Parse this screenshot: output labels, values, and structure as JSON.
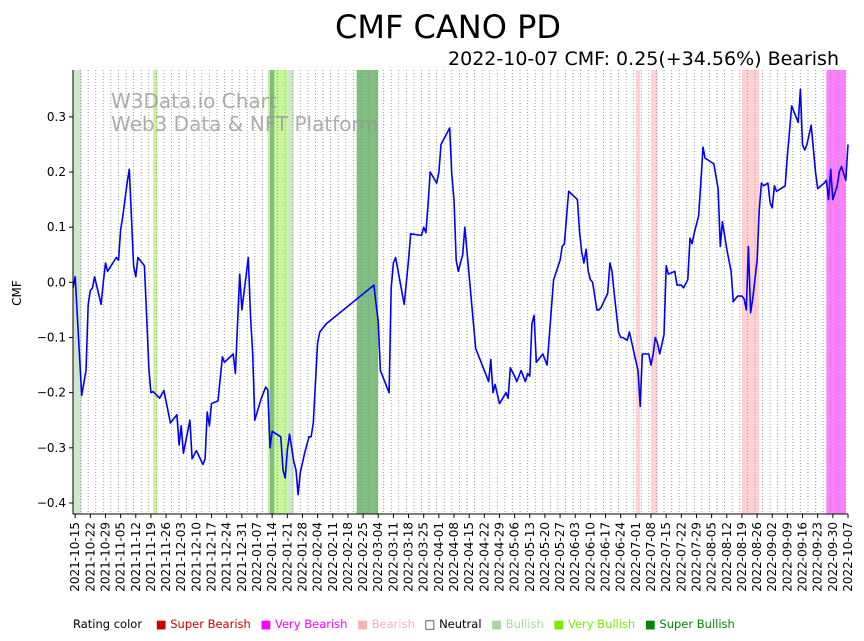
{
  "chart_data": {
    "type": "line",
    "title": "CMF CANO PD",
    "subtitle": "2022-10-07 CMF: 0.25(+34.56%) Bearish",
    "ylabel": "CMF",
    "watermark": [
      "W3Data.io Chart",
      "Web3 Data & NFT Platform"
    ],
    "x_start": "2021-10-14",
    "x_end": "2022-10-07",
    "ylim": [
      -0.42,
      0.385
    ],
    "yticks": [
      -0.4,
      -0.3,
      -0.2,
      -0.1,
      0.0,
      0.1,
      0.2,
      0.3
    ],
    "ytick_labels": [
      "−0.4",
      "−0.3",
      "−0.2",
      "−0.1",
      "0.0",
      "0.1",
      "0.2",
      "0.3"
    ],
    "xtick_labels": [
      "2021-10-15",
      "2021-10-22",
      "2021-10-29",
      "2021-11-05",
      "2021-11-12",
      "2021-11-19",
      "2021-11-26",
      "2021-12-03",
      "2021-12-10",
      "2021-12-17",
      "2021-12-24",
      "2021-12-31",
      "2022-01-07",
      "2022-01-14",
      "2022-01-21",
      "2022-01-28",
      "2022-02-04",
      "2022-02-11",
      "2022-02-18",
      "2022-02-25",
      "2022-03-04",
      "2022-03-11",
      "2022-03-18",
      "2022-03-25",
      "2022-04-01",
      "2022-04-08",
      "2022-04-15",
      "2022-04-22",
      "2022-04-29",
      "2022-05-06",
      "2022-05-13",
      "2022-05-20",
      "2022-05-27",
      "2022-06-03",
      "2022-06-10",
      "2022-06-17",
      "2022-06-24",
      "2022-07-01",
      "2022-07-08",
      "2022-07-15",
      "2022-07-22",
      "2022-07-29",
      "2022-08-05",
      "2022-08-12",
      "2022-08-19",
      "2022-08-26",
      "2022-09-02",
      "2022-09-09",
      "2022-09-16",
      "2022-09-23",
      "2022-09-30",
      "2022-10-07"
    ],
    "line_color": "#0000ff",
    "bands": [
      {
        "start": "2021-10-14",
        "end": "2021-10-18",
        "rating": "bullish"
      },
      {
        "start": "2021-11-20",
        "end": "2021-11-22",
        "rating": "very_bullish"
      },
      {
        "start": "2022-01-12",
        "end": "2022-01-21",
        "rating": "very_bullish"
      },
      {
        "start": "2022-01-13",
        "end": "2022-01-15",
        "rating": "super_bullish"
      },
      {
        "start": "2022-01-21",
        "end": "2022-01-24",
        "rating": "bullish"
      },
      {
        "start": "2022-02-22",
        "end": "2022-03-04",
        "rating": "super_bullish"
      },
      {
        "start": "2022-07-01",
        "end": "2022-07-03",
        "rating": "bearish"
      },
      {
        "start": "2022-07-08",
        "end": "2022-07-11",
        "rating": "bearish"
      },
      {
        "start": "2022-08-19",
        "end": "2022-08-27",
        "rating": "bearish"
      },
      {
        "start": "2022-09-27",
        "end": "2022-10-06",
        "rating": "very_bearish"
      }
    ],
    "series": [
      {
        "points": [
          [
            "2021-10-14",
            -0.01
          ],
          [
            "2021-10-15",
            0.01
          ],
          [
            "2021-10-16",
            -0.06
          ],
          [
            "2021-10-18",
            -0.205
          ],
          [
            "2021-10-20",
            -0.16
          ],
          [
            "2021-10-21",
            -0.04
          ],
          [
            "2021-10-22",
            -0.015
          ],
          [
            "2021-10-23",
            -0.01
          ],
          [
            "2021-10-24",
            0.01
          ],
          [
            "2021-10-27",
            -0.04
          ],
          [
            "2021-10-28",
            0.0
          ],
          [
            "2021-10-29",
            0.035
          ],
          [
            "2021-10-30",
            0.02
          ],
          [
            "2021-11-03",
            0.045
          ],
          [
            "2021-11-04",
            0.04
          ],
          [
            "2021-11-05",
            0.095
          ],
          [
            "2021-11-06",
            0.12
          ],
          [
            "2021-11-08",
            0.18
          ],
          [
            "2021-11-09",
            0.205
          ],
          [
            "2021-11-10",
            0.12
          ],
          [
            "2021-11-11",
            0.03
          ],
          [
            "2021-11-12",
            0.01
          ],
          [
            "2021-11-13",
            0.045
          ],
          [
            "2021-11-16",
            0.03
          ],
          [
            "2021-11-17",
            -0.06
          ],
          [
            "2021-11-18",
            -0.155
          ],
          [
            "2021-11-19",
            -0.2
          ],
          [
            "2021-11-20",
            -0.198
          ],
          [
            "2021-11-23",
            -0.21
          ],
          [
            "2021-11-25",
            -0.196
          ],
          [
            "2021-11-28",
            -0.255
          ],
          [
            "2021-12-01",
            -0.24
          ],
          [
            "2021-12-02",
            -0.295
          ],
          [
            "2021-12-03",
            -0.26
          ],
          [
            "2021-12-04",
            -0.31
          ],
          [
            "2021-12-07",
            -0.25
          ],
          [
            "2021-12-08",
            -0.32
          ],
          [
            "2021-12-10",
            -0.305
          ],
          [
            "2021-12-13",
            -0.33
          ],
          [
            "2021-12-14",
            -0.32
          ],
          [
            "2021-12-15",
            -0.235
          ],
          [
            "2021-12-16",
            -0.26
          ],
          [
            "2021-12-17",
            -0.22
          ],
          [
            "2021-12-20",
            -0.215
          ],
          [
            "2021-12-22",
            -0.135
          ],
          [
            "2021-12-23",
            -0.145
          ],
          [
            "2021-12-27",
            -0.13
          ],
          [
            "2021-12-28",
            -0.165
          ],
          [
            "2021-12-30",
            0.015
          ],
          [
            "2021-12-31",
            -0.05
          ],
          [
            "2022-01-03",
            0.045
          ],
          [
            "2022-01-04",
            -0.06
          ],
          [
            "2022-01-05",
            -0.13
          ],
          [
            "2022-01-06",
            -0.25
          ],
          [
            "2022-01-09",
            -0.21
          ],
          [
            "2022-01-11",
            -0.19
          ],
          [
            "2022-01-12",
            -0.195
          ],
          [
            "2022-01-13",
            -0.3
          ],
          [
            "2022-01-14",
            -0.27
          ],
          [
            "2022-01-18",
            -0.28
          ],
          [
            "2022-01-19",
            -0.34
          ],
          [
            "2022-01-20",
            -0.355
          ],
          [
            "2022-01-21",
            -0.305
          ],
          [
            "2022-01-22",
            -0.275
          ],
          [
            "2022-01-24",
            -0.325
          ],
          [
            "2022-01-25",
            -0.34
          ],
          [
            "2022-01-26",
            -0.385
          ],
          [
            "2022-01-27",
            -0.345
          ],
          [
            "2022-01-29",
            -0.31
          ],
          [
            "2022-01-31",
            -0.28
          ],
          [
            "2022-02-01",
            -0.28
          ],
          [
            "2022-02-02",
            -0.255
          ],
          [
            "2022-02-04",
            -0.11
          ],
          [
            "2022-02-05",
            -0.09
          ],
          [
            "2022-02-08",
            -0.075
          ],
          [
            "2022-03-02",
            -0.005
          ],
          [
            "2022-03-03",
            -0.04
          ],
          [
            "2022-03-04",
            -0.07
          ],
          [
            "2022-03-05",
            -0.16
          ],
          [
            "2022-03-09",
            -0.2
          ],
          [
            "2022-03-10",
            -0.01
          ],
          [
            "2022-03-11",
            0.035
          ],
          [
            "2022-03-12",
            0.045
          ],
          [
            "2022-03-16",
            -0.04
          ],
          [
            "2022-03-18",
            0.04
          ],
          [
            "2022-03-19",
            0.088
          ],
          [
            "2022-03-24",
            0.085
          ],
          [
            "2022-03-25",
            0.1
          ],
          [
            "2022-03-26",
            0.09
          ],
          [
            "2022-03-27",
            0.14
          ],
          [
            "2022-03-28",
            0.2
          ],
          [
            "2022-03-31",
            0.18
          ],
          [
            "2022-04-01",
            0.2
          ],
          [
            "2022-04-02",
            0.25
          ],
          [
            "2022-04-04",
            0.265
          ],
          [
            "2022-04-06",
            0.28
          ],
          [
            "2022-04-07",
            0.195
          ],
          [
            "2022-04-08",
            0.15
          ],
          [
            "2022-04-09",
            0.04
          ],
          [
            "2022-04-10",
            0.02
          ],
          [
            "2022-04-12",
            0.05
          ],
          [
            "2022-04-13",
            0.1
          ],
          [
            "2022-04-18",
            -0.12
          ],
          [
            "2022-04-23",
            -0.17
          ],
          [
            "2022-04-24",
            -0.18
          ],
          [
            "2022-04-25",
            -0.14
          ],
          [
            "2022-04-26",
            -0.2
          ],
          [
            "2022-04-27",
            -0.185
          ],
          [
            "2022-04-29",
            -0.22
          ],
          [
            "2022-05-02",
            -0.2
          ],
          [
            "2022-05-03",
            -0.21
          ],
          [
            "2022-05-04",
            -0.155
          ],
          [
            "2022-05-06",
            -0.17
          ],
          [
            "2022-05-07",
            -0.18
          ],
          [
            "2022-05-08",
            -0.17
          ],
          [
            "2022-05-09",
            -0.16
          ],
          [
            "2022-05-11",
            -0.18
          ],
          [
            "2022-05-12",
            -0.165
          ],
          [
            "2022-05-13",
            -0.17
          ],
          [
            "2022-05-14",
            -0.075
          ],
          [
            "2022-05-15",
            -0.06
          ],
          [
            "2022-05-16",
            -0.145
          ],
          [
            "2022-05-17",
            -0.14
          ],
          [
            "2022-05-19",
            -0.13
          ],
          [
            "2022-05-21",
            -0.15
          ],
          [
            "2022-05-24",
            0.005
          ],
          [
            "2022-05-27",
            0.04
          ],
          [
            "2022-05-28",
            0.065
          ],
          [
            "2022-05-29",
            0.07
          ],
          [
            "2022-05-30",
            0.12
          ],
          [
            "2022-05-31",
            0.165
          ],
          [
            "2022-06-04",
            0.15
          ],
          [
            "2022-06-05",
            0.09
          ],
          [
            "2022-06-06",
            0.055
          ],
          [
            "2022-06-07",
            0.035
          ],
          [
            "2022-06-08",
            0.06
          ],
          [
            "2022-06-09",
            0.02
          ],
          [
            "2022-06-10",
            0.005
          ],
          [
            "2022-06-11",
            0.0
          ],
          [
            "2022-06-13",
            -0.05
          ],
          [
            "2022-06-14",
            -0.05
          ],
          [
            "2022-06-15",
            -0.045
          ],
          [
            "2022-06-18",
            -0.02
          ],
          [
            "2022-06-19",
            0.035
          ],
          [
            "2022-06-20",
            0.02
          ],
          [
            "2022-06-21",
            -0.02
          ],
          [
            "2022-06-23",
            -0.09
          ],
          [
            "2022-06-24",
            -0.1
          ],
          [
            "2022-06-25",
            -0.1
          ],
          [
            "2022-06-27",
            -0.105
          ],
          [
            "2022-06-28",
            -0.09
          ],
          [
            "2022-07-02",
            -0.16
          ],
          [
            "2022-07-03",
            -0.225
          ],
          [
            "2022-07-04",
            -0.13
          ],
          [
            "2022-07-07",
            -0.13
          ],
          [
            "2022-07-08",
            -0.15
          ],
          [
            "2022-07-09",
            -0.13
          ],
          [
            "2022-07-10",
            -0.1
          ],
          [
            "2022-07-11",
            -0.11
          ],
          [
            "2022-07-12",
            -0.13
          ],
          [
            "2022-07-14",
            -0.095
          ],
          [
            "2022-07-15",
            0.03
          ],
          [
            "2022-07-16",
            0.015
          ],
          [
            "2022-07-19",
            0.02
          ],
          [
            "2022-07-20",
            -0.005
          ],
          [
            "2022-07-22",
            -0.005
          ],
          [
            "2022-07-23",
            -0.01
          ],
          [
            "2022-07-25",
            0.005
          ],
          [
            "2022-07-26",
            0.08
          ],
          [
            "2022-07-27",
            0.07
          ],
          [
            "2022-07-28",
            0.09
          ],
          [
            "2022-07-30",
            0.12
          ],
          [
            "2022-07-31",
            0.18
          ],
          [
            "2022-08-01",
            0.245
          ],
          [
            "2022-08-02",
            0.225
          ],
          [
            "2022-08-04",
            0.22
          ],
          [
            "2022-08-06",
            0.215
          ],
          [
            "2022-08-08",
            0.17
          ],
          [
            "2022-08-09",
            0.065
          ],
          [
            "2022-08-10",
            0.11
          ],
          [
            "2022-08-12",
            0.06
          ],
          [
            "2022-08-14",
            0.02
          ],
          [
            "2022-08-15",
            -0.035
          ],
          [
            "2022-08-16",
            -0.03
          ],
          [
            "2022-08-17",
            -0.025
          ],
          [
            "2022-08-19",
            -0.025
          ],
          [
            "2022-08-20",
            -0.03
          ],
          [
            "2022-08-21",
            -0.05
          ],
          [
            "2022-08-22",
            0.065
          ],
          [
            "2022-08-23",
            -0.055
          ],
          [
            "2022-08-24",
            -0.03
          ],
          [
            "2022-08-26",
            0.04
          ],
          [
            "2022-08-27",
            0.13
          ],
          [
            "2022-08-28",
            0.18
          ],
          [
            "2022-08-29",
            0.175
          ],
          [
            "2022-08-31",
            0.18
          ],
          [
            "2022-09-01",
            0.145
          ],
          [
            "2022-09-02",
            0.135
          ],
          [
            "2022-09-03",
            0.175
          ],
          [
            "2022-09-04",
            0.165
          ],
          [
            "2022-09-06",
            0.17
          ],
          [
            "2022-09-08",
            0.175
          ],
          [
            "2022-09-09",
            0.23
          ],
          [
            "2022-09-11",
            0.32
          ],
          [
            "2022-09-14",
            0.29
          ],
          [
            "2022-09-15",
            0.35
          ],
          [
            "2022-09-16",
            0.25
          ],
          [
            "2022-09-17",
            0.24
          ],
          [
            "2022-09-18",
            0.25
          ],
          [
            "2022-09-20",
            0.285
          ],
          [
            "2022-09-22",
            0.2
          ],
          [
            "2022-09-23",
            0.17
          ],
          [
            "2022-09-26",
            0.18
          ],
          [
            "2022-09-27",
            0.185
          ],
          [
            "2022-09-28",
            0.15
          ],
          [
            "2022-09-29",
            0.205
          ],
          [
            "2022-09-30",
            0.15
          ],
          [
            "2022-10-02",
            0.175
          ],
          [
            "2022-10-03",
            0.2
          ],
          [
            "2022-10-04",
            0.21
          ],
          [
            "2022-10-06",
            0.185
          ],
          [
            "2022-10-07",
            0.25
          ]
        ]
      }
    ],
    "legend": {
      "title": "Rating color",
      "items": [
        {
          "label": "Super Bearish",
          "color": "#cc0000",
          "key": "super_bearish"
        },
        {
          "label": "Very Bearish",
          "color": "#ff00ff",
          "key": "very_bearish"
        },
        {
          "label": "Bearish",
          "color": "#ffb0b0",
          "key": "bearish"
        },
        {
          "label": "Neutral",
          "color": "#ffffff",
          "key": "neutral"
        },
        {
          "label": "Bullish",
          "color": "#a8d8a0",
          "key": "bullish"
        },
        {
          "label": "Very Bullish",
          "color": "#77ee00",
          "key": "very_bullish"
        },
        {
          "label": "Super Bullish",
          "color": "#008800",
          "key": "super_bullish"
        }
      ]
    },
    "band_colors": {
      "bullish": "#cfe8cc",
      "very_bullish": "#c7f59a",
      "super_bullish": "#7fbf7f",
      "bearish": "#ffd0d4",
      "very_bearish": "#ff80ff",
      "super_bearish": "#e06060",
      "neutral": "#ffffff"
    }
  }
}
